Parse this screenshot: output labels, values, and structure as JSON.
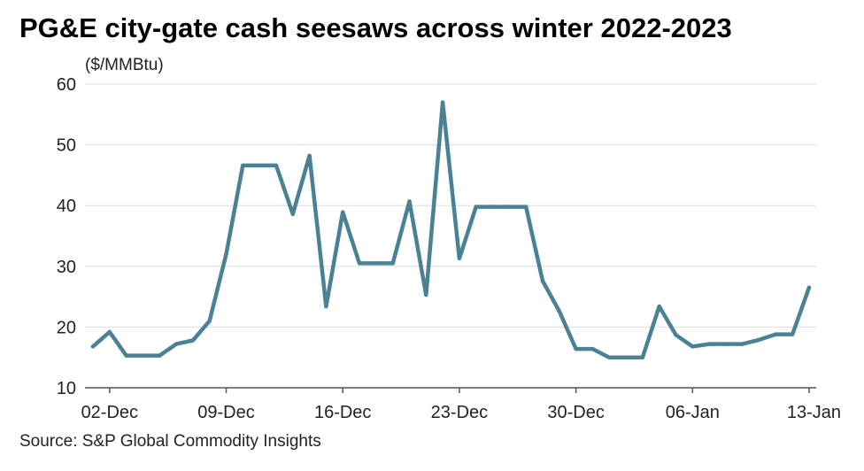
{
  "chart_data": {
    "type": "line",
    "title": "PG&E city-gate cash seesaws across winter 2022-2023",
    "ylabel": "($/MMBtu)",
    "xlabel": "",
    "source": "Source: S&P Global Commodity Insights",
    "ylim": [
      10,
      60
    ],
    "yticks": [
      10,
      20,
      30,
      40,
      50,
      60
    ],
    "xticks": [
      {
        "index": 1,
        "label": "02-Dec"
      },
      {
        "index": 8,
        "label": "09-Dec"
      },
      {
        "index": 15,
        "label": "16-Dec"
      },
      {
        "index": 22,
        "label": "23-Dec"
      },
      {
        "index": 29,
        "label": "30-Dec"
      },
      {
        "index": 36,
        "label": "06-Jan"
      },
      {
        "index": 43,
        "label": "13-Jan"
      }
    ],
    "grid": true,
    "line_color": "#4a8294",
    "series": [
      {
        "name": "",
        "values": [
          16.8,
          19.2,
          15.3,
          15.3,
          15.3,
          17.2,
          17.8,
          21.0,
          32.0,
          46.6,
          46.6,
          46.6,
          38.6,
          48.2,
          23.4,
          38.9,
          30.5,
          30.5,
          30.5,
          40.7,
          25.3,
          57.0,
          31.3,
          39.8,
          39.8,
          39.8,
          39.8,
          27.6,
          22.6,
          16.4,
          16.4,
          15.0,
          15.0,
          15.0,
          23.4,
          18.7,
          16.8,
          17.2,
          17.2,
          17.2,
          17.9,
          18.8,
          18.8,
          26.5
        ]
      }
    ]
  }
}
